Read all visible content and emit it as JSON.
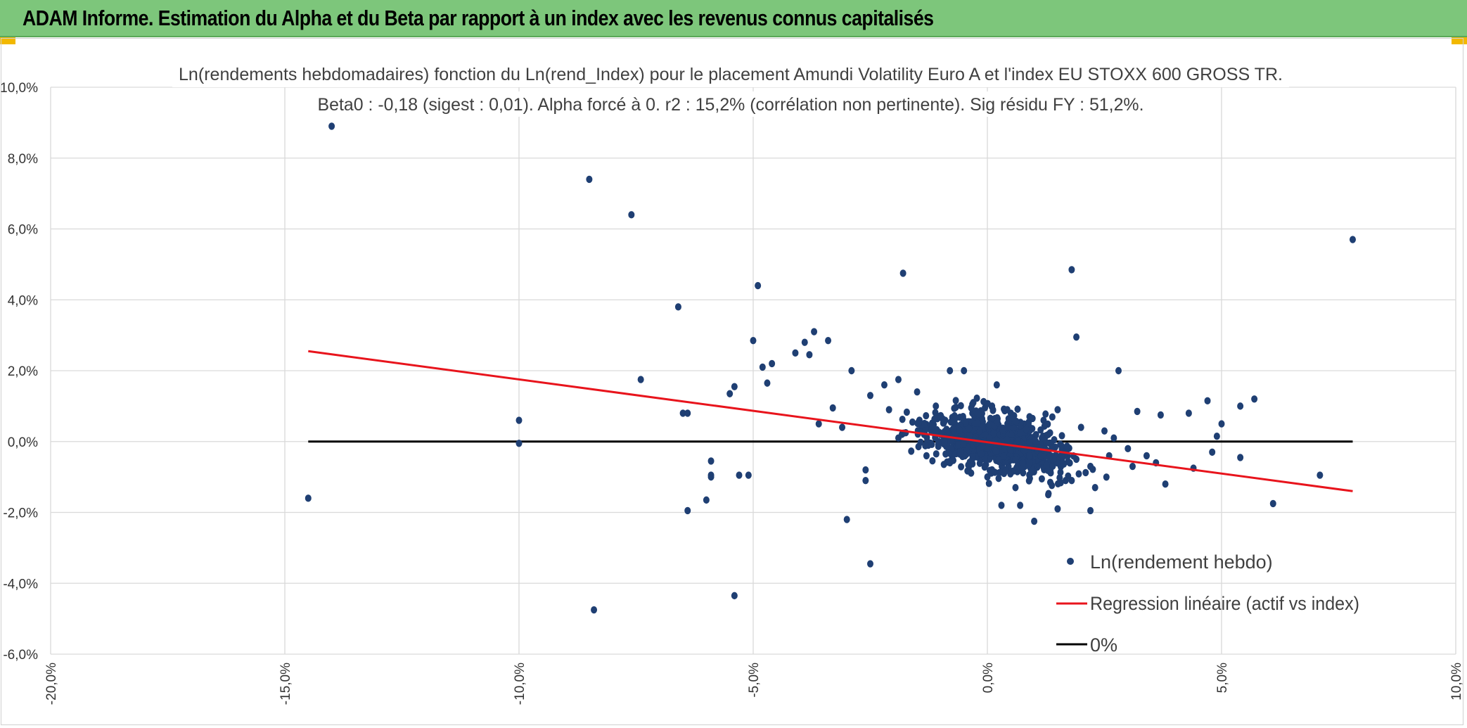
{
  "header": {
    "title": "ADAM Informe. Estimation du Alpha et du Beta par rapport à un index avec les revenus connus capitalisés"
  },
  "colors": {
    "header_bg": "#7dc67b",
    "points": "#1f3f73",
    "regression": "#e8141c",
    "zero_line": "#000000",
    "grid": "#d9d9d9"
  },
  "chart_data": {
    "type": "scatter",
    "title_lines": [
      "Ln(rendements hebdomadaires) fonction du Ln(rend_Index) pour le placement Amundi Volatility Euro A  et l'index EU STOXX 600 GROSS TR.",
      "Beta0 : -0,18 (sigest : 0,01). Alpha forcé à 0. r2 : 15,2% (corrélation non pertinente). Sig résidu FY : 51,2%."
    ],
    "xlabel": "",
    "ylabel": "",
    "xlim": [
      -20,
      10
    ],
    "ylim": [
      -6,
      10
    ],
    "x_ticks": [
      -20,
      -15,
      -10,
      -5,
      0,
      5,
      10
    ],
    "x_tick_labels": [
      "-20,0%",
      "-15,0%",
      "-10,0%",
      "-5,0%",
      "0,0%",
      "5,0%",
      "10,0%"
    ],
    "y_ticks": [
      10,
      8,
      6,
      4,
      2,
      0,
      -2,
      -4,
      -6
    ],
    "y_tick_labels": [
      "10,0%",
      "8,0%",
      "6,0%",
      "4,0%",
      "2,0%",
      "0,0%",
      "-2,0%",
      "-4,0%",
      "-6,0%"
    ],
    "grid": true,
    "legend_position": "bottom-right",
    "series": [
      {
        "name": "Ln(rendement hebdo)",
        "kind": "scatter",
        "points": [
          [
            -14,
            8.9
          ],
          [
            -8.5,
            7.4
          ],
          [
            -7.6,
            6.4
          ],
          [
            7.8,
            5.7
          ],
          [
            -1.8,
            4.75
          ],
          [
            1.8,
            4.85
          ],
          [
            -4.9,
            4.4
          ],
          [
            -6.6,
            3.8
          ],
          [
            -3.7,
            3.1
          ],
          [
            -3.4,
            2.85
          ],
          [
            -5,
            2.85
          ],
          [
            1.9,
            2.95
          ],
          [
            -3.9,
            2.8
          ],
          [
            -4.1,
            2.5
          ],
          [
            -3.8,
            2.45
          ],
          [
            -4.6,
            2.2
          ],
          [
            -4.8,
            2.1
          ],
          [
            -7.4,
            1.75
          ],
          [
            -4.7,
            1.65
          ],
          [
            -5.4,
            1.55
          ],
          [
            -2.9,
            2
          ],
          [
            -0.8,
            2
          ],
          [
            -0.5,
            2
          ],
          [
            2.8,
            2
          ],
          [
            -2.2,
            1.6
          ],
          [
            -1.9,
            1.75
          ],
          [
            0.2,
            1.6
          ],
          [
            -5.5,
            1.35
          ],
          [
            -6.5,
            0.8
          ],
          [
            -6.4,
            0.8
          ],
          [
            -10,
            0.6
          ],
          [
            -10,
            -0.05
          ],
          [
            4.3,
            0.8
          ],
          [
            4.7,
            1.15
          ],
          [
            5.4,
            1
          ],
          [
            5.7,
            1.2
          ],
          [
            3.2,
            0.85
          ],
          [
            3.7,
            0.75
          ],
          [
            5,
            0.5
          ],
          [
            4.9,
            0.15
          ],
          [
            -14.5,
            -1.6
          ],
          [
            -5.9,
            -0.55
          ],
          [
            -5.9,
            -0.95
          ],
          [
            -5.9,
            -1
          ],
          [
            -5.3,
            -0.95
          ],
          [
            -5.1,
            -0.95
          ],
          [
            -6.4,
            -1.95
          ],
          [
            -6,
            -1.65
          ],
          [
            -2.6,
            -0.8
          ],
          [
            -2.6,
            -1.1
          ],
          [
            -3,
            -2.2
          ],
          [
            -2.5,
            -3.45
          ],
          [
            -5.4,
            -4.35
          ],
          [
            -8.4,
            -4.75
          ],
          [
            0.3,
            -1.8
          ],
          [
            0.7,
            -1.8
          ],
          [
            1.0,
            -2.25
          ],
          [
            1.5,
            -1.9
          ],
          [
            2.2,
            -1.95
          ],
          [
            6.1,
            -1.75
          ],
          [
            7.1,
            -0.95
          ],
          [
            5.4,
            -0.45
          ],
          [
            3.8,
            -1.2
          ],
          [
            4.4,
            -0.75
          ],
          [
            4.8,
            -0.3
          ],
          [
            3.1,
            -0.7
          ],
          [
            -1.9,
            0.1
          ],
          [
            -2.1,
            0.9
          ],
          [
            -2.5,
            1.3
          ],
          [
            -3.1,
            0.4
          ],
          [
            -3.6,
            0.5
          ],
          [
            -3.3,
            0.95
          ],
          [
            -1.5,
            1.4
          ],
          [
            -1.1,
            1.0
          ],
          [
            -0.9,
            0.6
          ],
          [
            -1.2,
            0.3
          ],
          [
            -1.6,
            0.55
          ],
          [
            -0.3,
            1.1
          ],
          [
            0.1,
            1.0
          ],
          [
            0.5,
            0.8
          ],
          [
            0.9,
            0.7
          ],
          [
            1.2,
            0.6
          ],
          [
            1.5,
            0.9
          ],
          [
            2.0,
            0.4
          ],
          [
            2.5,
            0.3
          ],
          [
            2.7,
            0.1
          ],
          [
            3.0,
            -0.2
          ],
          [
            3.4,
            -0.4
          ],
          [
            3.6,
            -0.6
          ],
          [
            2.3,
            -1.3
          ],
          [
            1.8,
            -1.1
          ],
          [
            1.3,
            -1.5
          ],
          [
            0.6,
            -1.3
          ],
          [
            0.0,
            -1.0
          ],
          [
            -0.4,
            -0.8
          ],
          [
            -0.8,
            -0.6
          ],
          [
            -1.3,
            -0.4
          ],
          [
            -0.6,
            -0.2
          ],
          [
            -0.2,
            -0.3
          ],
          [
            0.2,
            -0.5
          ],
          [
            0.4,
            -0.2
          ],
          [
            0.7,
            -0.4
          ],
          [
            1.0,
            -0.3
          ],
          [
            1.3,
            -0.6
          ],
          [
            1.6,
            -0.2
          ],
          [
            1.9,
            -0.5
          ],
          [
            2.2,
            -0.7
          ],
          [
            2.6,
            -0.4
          ],
          [
            -0.5,
            0.4
          ],
          [
            -0.1,
            0.2
          ],
          [
            0.3,
            0.1
          ],
          [
            0.6,
            0.3
          ],
          [
            0.9,
            0.0
          ],
          [
            1.1,
            -0.1
          ],
          [
            -0.7,
            0.1
          ],
          [
            -1.0,
            0.2
          ],
          [
            -0.3,
            -0.1
          ],
          [
            0.0,
            0.4
          ],
          [
            0.8,
            -0.7
          ]
        ]
      },
      {
        "name": "Regression linéaire (actif vs index)",
        "kind": "line",
        "beta": -0.18,
        "x": [
          -14.5,
          7.8
        ],
        "y": [
          2.55,
          -1.4
        ]
      },
      {
        "name": "0%",
        "kind": "line",
        "x": [
          -14.5,
          7.8
        ],
        "y": [
          0,
          0
        ]
      }
    ]
  }
}
